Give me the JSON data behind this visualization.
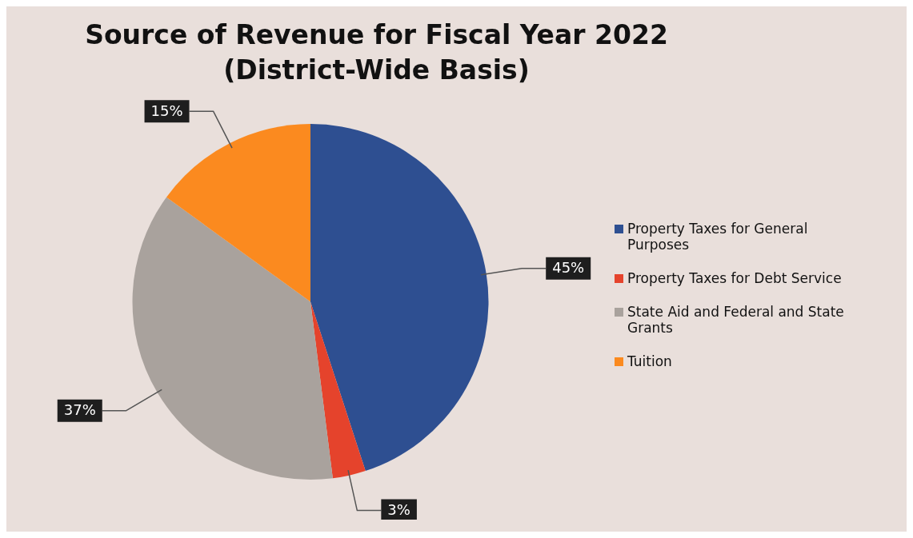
{
  "chart_data": {
    "type": "pie",
    "title": "Source of Revenue for Fiscal Year 2022",
    "subtitle": "(District-Wide Basis)",
    "categories": [
      "Property Taxes for General Purposes",
      "Property Taxes for Debt Service",
      "State Aid and Federal and State Grants",
      "Tuition"
    ],
    "values": [
      45,
      3,
      37,
      15
    ],
    "colors": [
      "#2e4f91",
      "#e5432c",
      "#a9a29d",
      "#fb8a1f"
    ],
    "value_labels": [
      "45%",
      "3%",
      "37%",
      "15%"
    ],
    "legend": "right"
  }
}
